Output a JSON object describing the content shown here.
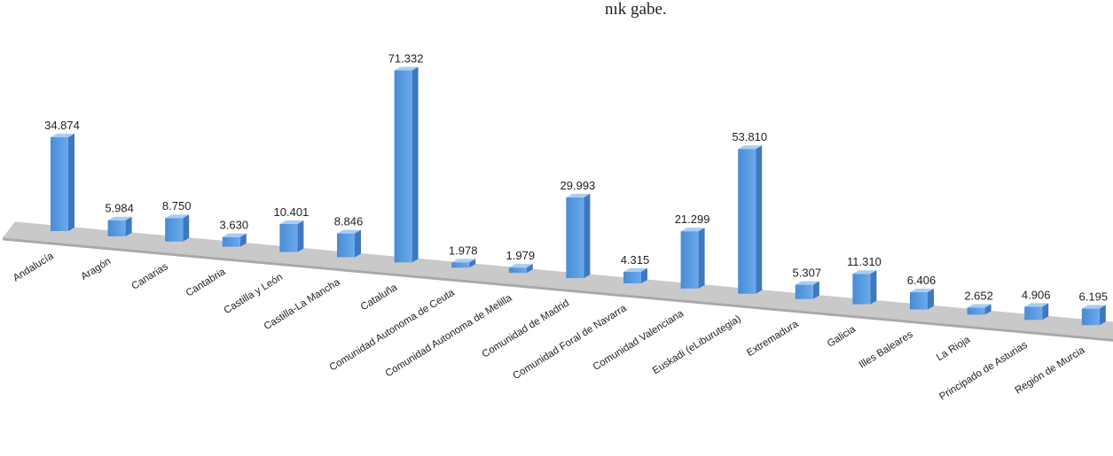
{
  "header": {
    "fragment": "nık gabe."
  },
  "chart_data": {
    "type": "bar",
    "title": "",
    "xlabel": "",
    "ylabel": "",
    "legend": "none",
    "grid": false,
    "view": "3d",
    "ylim": [
      0,
      75000
    ],
    "colors": {
      "bar_front": "#5b9de0",
      "bar_side": "#3f78bd",
      "bar_top": "#a9cdf2",
      "floor": "#c9c9c9"
    },
    "categories": [
      "Andalucía",
      "Aragón",
      "Canarias",
      "Cantabria",
      "Castilla y León",
      "Castilla-La Mancha",
      "Cataluña",
      "Comunidad Autonoma de Ceuta",
      "Comunidad Autonoma de Melilla",
      "Comunidad de Madrid",
      "Comunidad Foral de Navarra",
      "Comunidad Valenciana",
      "Euskadi (eLiburutegia)",
      "Extremadura",
      "Galicia",
      "Illes Baleares",
      "La Rioja",
      "Principado de Asturias",
      "Región de Murcia"
    ],
    "values": [
      34874,
      5984,
      8750,
      3630,
      10401,
      8846,
      71332,
      1978,
      1979,
      29993,
      4315,
      21299,
      53810,
      5307,
      11310,
      6406,
      2652,
      4906,
      6195
    ],
    "value_labels": [
      "34.874",
      "5.984",
      "8.750",
      "3.630",
      "10.401",
      "8.846",
      "71.332",
      "1.978",
      "1.979",
      "29.993",
      "4.315",
      "21.299",
      "53.810",
      "5.307",
      "11.310",
      "6.406",
      "2.652",
      "4.906",
      "6.195"
    ]
  }
}
